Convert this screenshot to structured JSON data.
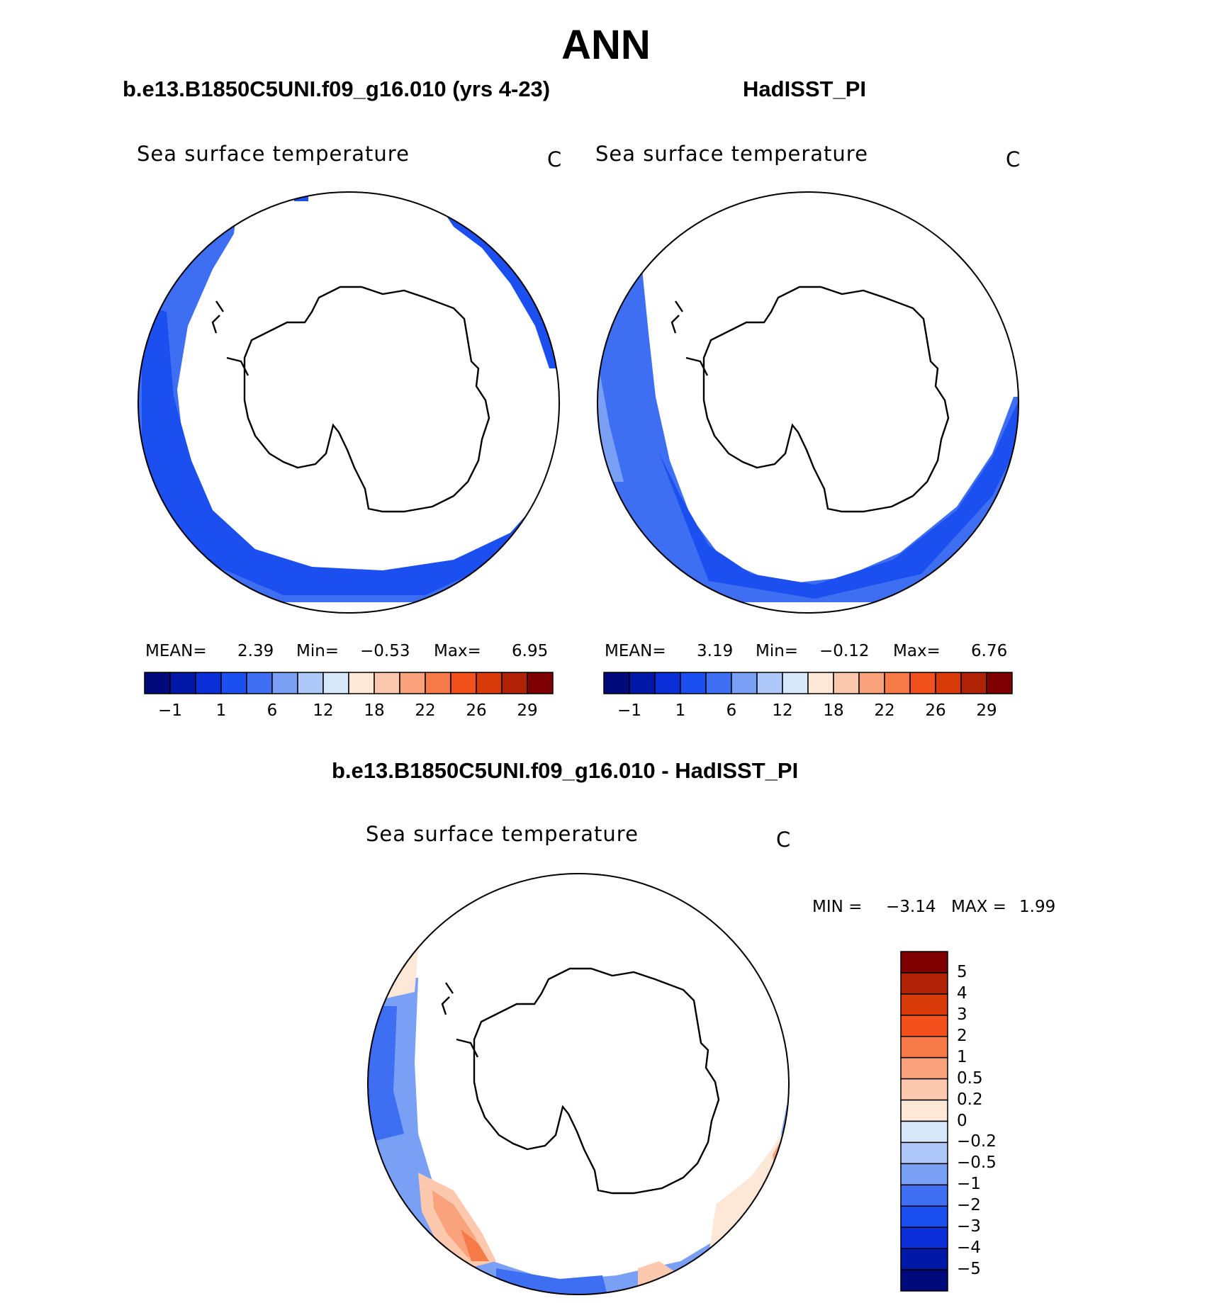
{
  "figure": {
    "title": "ANN"
  },
  "panels": {
    "model": {
      "case_title": "b.e13.B1850C5UNI.f09_g16.010 (yrs 4-23)",
      "variable": "Sea surface temperature",
      "units": "C",
      "mean_label": "MEAN=",
      "mean": "2.39",
      "min_label": "Min=",
      "min": "−0.53",
      "max_label": "Max=",
      "max": "6.95"
    },
    "obs": {
      "case_title": "HadISST_PI",
      "variable": "Sea surface temperature",
      "units": "C",
      "mean_label": "MEAN=",
      "mean": "3.19",
      "min_label": "Min=",
      "min": "−0.12",
      "max_label": "Max=",
      "max": "6.76"
    },
    "diff": {
      "case_title": "b.e13.B1850C5UNI.f09_g16.010 - HadISST_PI",
      "variable": "Sea surface temperature",
      "units": "C",
      "min_label": "MIN =",
      "min": "−3.14",
      "max_label": "MAX =",
      "max": "1.99"
    }
  },
  "chart_data": [
    {
      "type": "heatmap",
      "title": "b.e13.B1850C5UNI.f09_g16.010 (yrs 4-23)",
      "subtitle": "Sea surface temperature",
      "units": "C",
      "projection": "south polar stereographic",
      "summary": {
        "mean": 2.39,
        "min": -0.53,
        "max": 6.95
      },
      "colorbar": {
        "orientation": "horizontal",
        "tick_labels": [
          "−1",
          "1",
          "6",
          "12",
          "18",
          "22",
          "26",
          "29"
        ],
        "colors": [
          "#000a7a",
          "#0018a8",
          "#0a2fd8",
          "#1c4ff0",
          "#3e6ef2",
          "#7aa0f6",
          "#aec8fa",
          "#d8e8fb",
          "#fde8d8",
          "#fcc9ae",
          "#f9a27c",
          "#f77b48",
          "#f2501c",
          "#d83a0a",
          "#b02206",
          "#7f0000"
        ]
      }
    },
    {
      "type": "heatmap",
      "title": "HadISST_PI",
      "subtitle": "Sea surface temperature",
      "units": "C",
      "projection": "south polar stereographic",
      "summary": {
        "mean": 3.19,
        "min": -0.12,
        "max": 6.76
      },
      "colorbar": {
        "orientation": "horizontal",
        "tick_labels": [
          "−1",
          "1",
          "6",
          "12",
          "18",
          "22",
          "26",
          "29"
        ],
        "colors": [
          "#000a7a",
          "#0018a8",
          "#0a2fd8",
          "#1c4ff0",
          "#3e6ef2",
          "#7aa0f6",
          "#aec8fa",
          "#d8e8fb",
          "#fde8d8",
          "#fcc9ae",
          "#f9a27c",
          "#f77b48",
          "#f2501c",
          "#d83a0a",
          "#b02206",
          "#7f0000"
        ]
      }
    },
    {
      "type": "heatmap",
      "title": "b.e13.B1850C5UNI.f09_g16.010 - HadISST_PI",
      "subtitle": "Sea surface temperature",
      "units": "C",
      "projection": "south polar stereographic",
      "summary": {
        "min": -3.14,
        "max": 1.99
      },
      "colorbar": {
        "orientation": "vertical",
        "tick_labels": [
          "5",
          "4",
          "3",
          "2",
          "1",
          "0.5",
          "0.2",
          "0",
          "−0.2",
          "−0.5",
          "−1",
          "−2",
          "−3",
          "−4",
          "−5"
        ],
        "colors": [
          "#7f0000",
          "#b02206",
          "#d83a0a",
          "#f2501c",
          "#f77b48",
          "#f9a27c",
          "#fcc9ae",
          "#fde8d8",
          "#d8e8fb",
          "#aec8fa",
          "#7aa0f6",
          "#3e6ef2",
          "#1c4ff0",
          "#0a2fd8",
          "#0018a8",
          "#000a7a"
        ]
      }
    }
  ]
}
